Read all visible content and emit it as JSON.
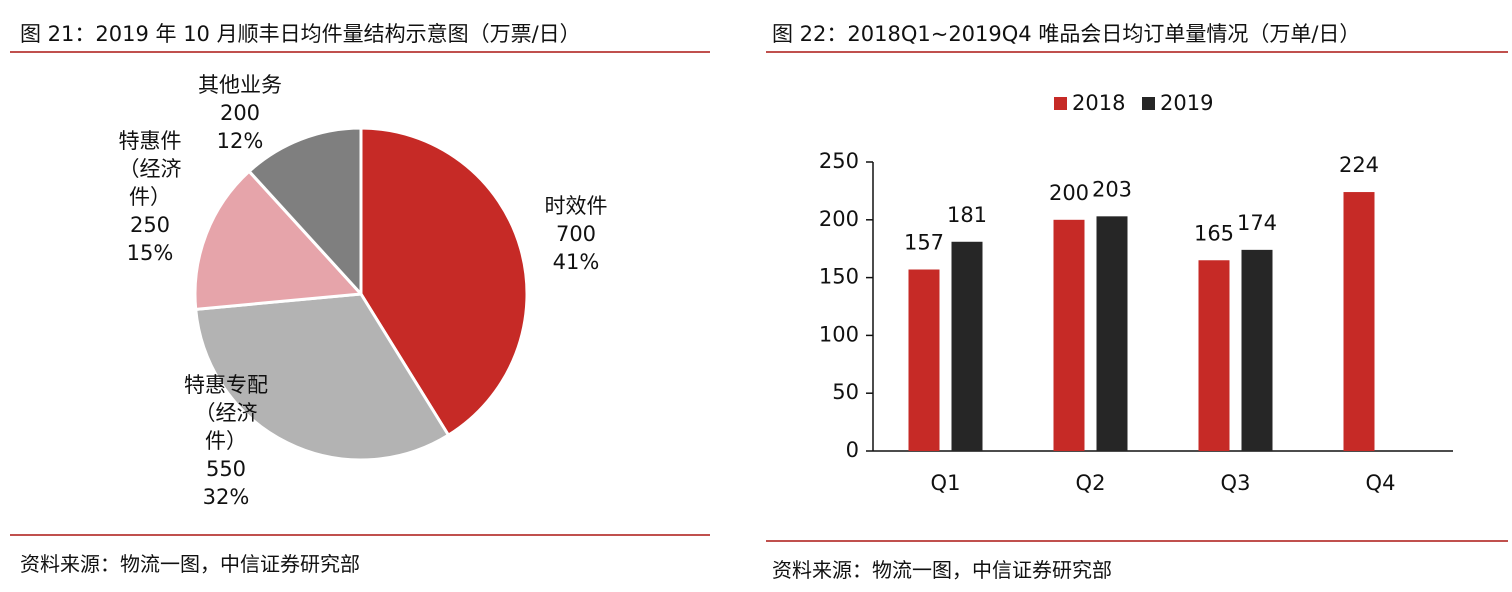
{
  "left_figure": {
    "title": "图 21：2019 年 10 月顺丰日均件量结构示意图（万票/日）",
    "source": "资料来源：物流一图，中信证券研究部"
  },
  "right_figure": {
    "title": "图 22：2018Q1~2019Q4 唯品会日均订单量情况（万单/日）",
    "source": "资料来源：物流一图，中信证券研究部"
  },
  "chart_data": [
    {
      "type": "pie",
      "title": "图 21：2019 年 10 月顺丰日均件量结构示意图（万票/日）",
      "slices": [
        {
          "label": [
            "时效件"
          ],
          "value": 700,
          "percent": "41%",
          "color": "#c62a26"
        },
        {
          "label": [
            "特惠专配",
            "（经济",
            "件）"
          ],
          "value": 550,
          "percent": "32%",
          "color": "#b3b3b3"
        },
        {
          "label": [
            "特惠件",
            "（经济",
            "件）"
          ],
          "value": 250,
          "percent": "15%",
          "color": "#e6a4aa"
        },
        {
          "label": [
            "其他业务"
          ],
          "value": 200,
          "percent": "12%",
          "color": "#7f7f7f"
        }
      ]
    },
    {
      "type": "bar",
      "title": "图 22：2018Q1~2019Q4 唯品会日均订单量情况（万单/日）",
      "categories": [
        "Q1",
        "Q2",
        "Q3",
        "Q4"
      ],
      "series": [
        {
          "name": "2018",
          "values": [
            157,
            200,
            165,
            224
          ],
          "color": "#c62a26"
        },
        {
          "name": "2019",
          "values": [
            181,
            203,
            174,
            null
          ],
          "color": "#262626"
        }
      ],
      "ylim": [
        0,
        250
      ],
      "yticks": [
        0,
        50,
        100,
        150,
        200,
        250
      ],
      "legend": "top-center",
      "grid": false
    }
  ]
}
